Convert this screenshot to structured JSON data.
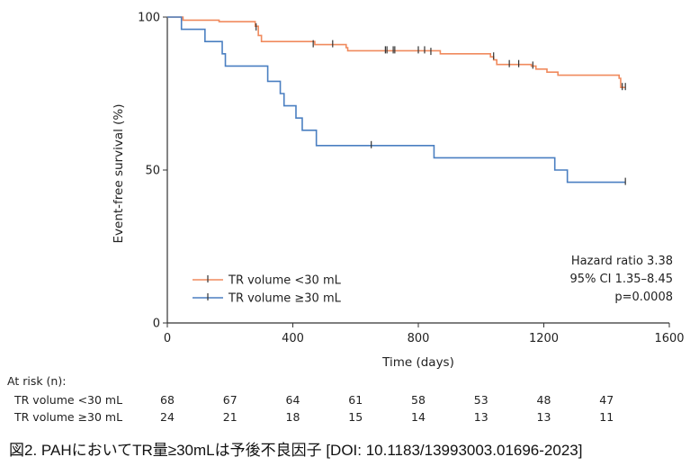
{
  "chart_data": {
    "type": "line",
    "subtype": "kaplan-meier",
    "xlabel": "Time (days)",
    "ylabel": "Event-free survival (%)",
    "xlim": [
      0,
      1600
    ],
    "ylim": [
      0,
      100
    ],
    "xticks": [
      0,
      400,
      800,
      1200,
      1600
    ],
    "yticks": [
      0,
      50,
      100
    ],
    "grid": false,
    "legend_position": "bottom-left",
    "series": [
      {
        "name": "TR volume <30 mL",
        "color": "#f08a5d",
        "steps": [
          [
            0,
            100
          ],
          [
            50,
            99
          ],
          [
            160,
            99
          ],
          [
            165,
            98.5
          ],
          [
            280,
            97
          ],
          [
            290,
            94
          ],
          [
            300,
            92
          ],
          [
            470,
            91
          ],
          [
            570,
            90
          ],
          [
            575,
            89
          ],
          [
            870,
            88
          ],
          [
            1030,
            87
          ],
          [
            1040,
            86
          ],
          [
            1050,
            84.5
          ],
          [
            1160,
            84
          ],
          [
            1175,
            83
          ],
          [
            1210,
            82
          ],
          [
            1245,
            81
          ],
          [
            1440,
            80
          ],
          [
            1445,
            77
          ],
          [
            1460,
            77
          ]
        ],
        "censored": [
          [
            283,
            96.5
          ],
          [
            465,
            91
          ],
          [
            527,
            91
          ],
          [
            695,
            89
          ],
          [
            700,
            89
          ],
          [
            720,
            89
          ],
          [
            725,
            89
          ],
          [
            800,
            89
          ],
          [
            820,
            89
          ],
          [
            840,
            88.5
          ],
          [
            1040,
            87
          ],
          [
            1090,
            84.5
          ],
          [
            1120,
            84.5
          ],
          [
            1165,
            84
          ],
          [
            1450,
            77
          ],
          [
            1460,
            77
          ]
        ]
      },
      {
        "name": "TR volume ≥30 mL",
        "color": "#4a7fc1",
        "steps": [
          [
            0,
            100
          ],
          [
            45,
            96
          ],
          [
            120,
            92
          ],
          [
            175,
            88
          ],
          [
            185,
            84
          ],
          [
            320,
            79
          ],
          [
            360,
            75
          ],
          [
            372,
            71
          ],
          [
            410,
            67
          ],
          [
            430,
            63
          ],
          [
            475,
            58
          ],
          [
            850,
            54
          ],
          [
            1235,
            50
          ],
          [
            1275,
            46
          ],
          [
            1460,
            46
          ]
        ],
        "censored": [
          [
            650,
            58
          ],
          [
            1460,
            46
          ]
        ]
      }
    ],
    "annotations": [
      "Hazard ratio 3.38",
      "95% CI 1.35–8.45",
      "p=0.0008"
    ],
    "at_risk": {
      "title": "At risk (n):",
      "time_points": [
        0,
        200,
        400,
        600,
        800,
        1000,
        1200,
        1400
      ],
      "rows": [
        {
          "label": "TR volume <30 mL",
          "values": [
            "68",
            "67",
            "64",
            "61",
            "58",
            "53",
            "48",
            "47"
          ]
        },
        {
          "label": "TR volume ≥30 mL",
          "values": [
            "24",
            "21",
            "18",
            "15",
            "14",
            "13",
            "13",
            "11"
          ]
        }
      ]
    }
  },
  "caption": "図2. PAHにおいてTR量≥30mLは予後不良因子 [DOI: 10.1183/13993003.01696-2023]"
}
